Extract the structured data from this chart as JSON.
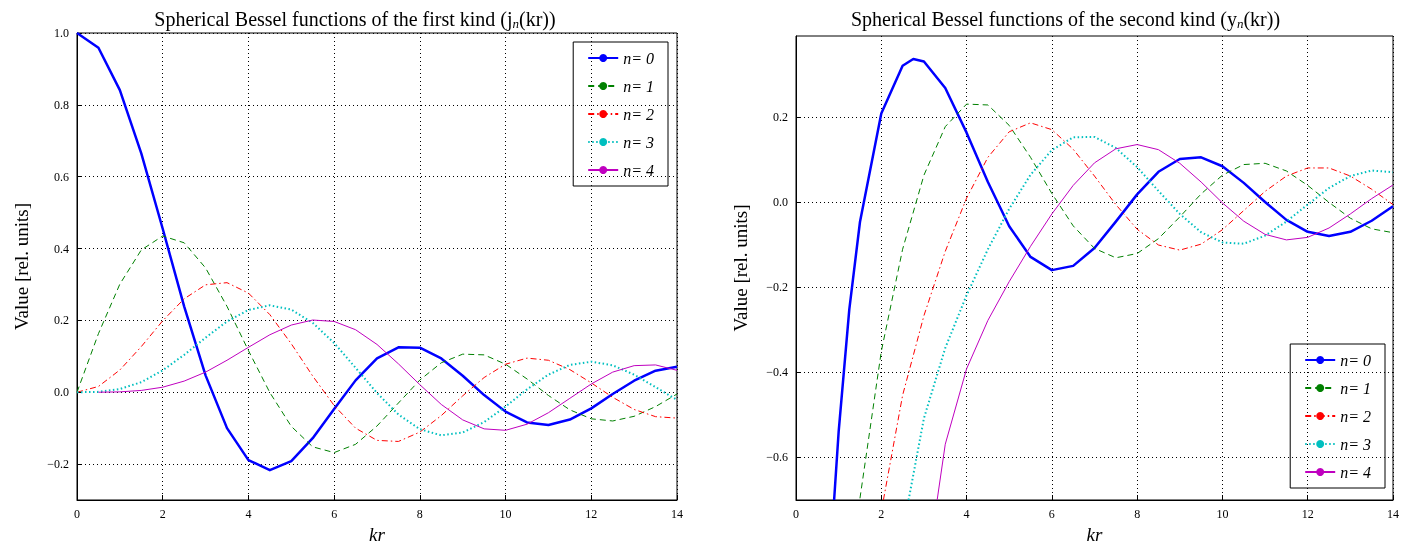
{
  "chart_data": [
    {
      "type": "line",
      "title": "Spherical Bessel functions of the first kind (j$_{n}$(kr))",
      "xlabel": "kr",
      "ylabel": "Value [rel. units]",
      "x": [
        0,
        0.5,
        1,
        1.5,
        2,
        2.5,
        3,
        3.5,
        4,
        4.5,
        5,
        5.5,
        6,
        6.5,
        7,
        7.5,
        8,
        8.5,
        9,
        9.5,
        10,
        10.5,
        11,
        11.5,
        12,
        12.5,
        13,
        13.5,
        14
      ],
      "series": [
        {
          "name": "n= 0",
          "color": "#0000ff",
          "line_style": "solid",
          "values": [
            1,
            0.959,
            0.841,
            0.665,
            0.455,
            0.239,
            0.047,
            -0.1,
            -0.189,
            -0.217,
            -0.192,
            -0.128,
            -0.047,
            0.033,
            0.094,
            0.125,
            0.124,
            0.094,
            0.046,
            -0.008,
            -0.054,
            -0.084,
            -0.091,
            -0.076,
            -0.045,
            -0.005,
            0.032,
            0.06,
            0.071
          ]
        },
        {
          "name": "n= 1",
          "color": "#008000",
          "line_style": "dashed",
          "values": [
            0,
            0.163,
            0.301,
            0.396,
            0.435,
            0.416,
            0.346,
            0.239,
            0.116,
            -0.001,
            -0.095,
            -0.152,
            -0.168,
            -0.145,
            -0.094,
            -0.03,
            0.034,
            0.082,
            0.106,
            0.104,
            0.078,
            0.037,
            -0.009,
            -0.049,
            -0.074,
            -0.08,
            -0.067,
            -0.04,
            -0.005
          ]
        },
        {
          "name": "n= 2",
          "color": "#ff0000",
          "line_style": "dashdot",
          "values": [
            0,
            0.016,
            0.062,
            0.127,
            0.199,
            0.26,
            0.299,
            0.305,
            0.276,
            0.216,
            0.135,
            0.045,
            -0.037,
            -0.1,
            -0.134,
            -0.137,
            -0.111,
            -0.065,
            -0.01,
            0.041,
            0.078,
            0.095,
            0.089,
            0.063,
            0.026,
            -0.014,
            -0.048,
            -0.068,
            -0.072
          ]
        },
        {
          "name": "n= 3",
          "color": "#00bfbf",
          "line_style": "dotted",
          "values": [
            0,
            0.001,
            0.009,
            0.028,
            0.061,
            0.104,
            0.152,
            0.197,
            0.229,
            0.242,
            0.23,
            0.193,
            0.137,
            0.068,
            -0.002,
            -0.062,
            -0.103,
            -0.12,
            -0.112,
            -0.083,
            -0.04,
            0.008,
            0.049,
            0.076,
            0.085,
            0.075,
            0.049,
            0.014,
            -0.021
          ]
        },
        {
          "name": "n= 4",
          "color": "#bf00bf",
          "line_style": "solid",
          "values": [
            null,
            0,
            0.001,
            0.005,
            0.014,
            0.031,
            0.056,
            0.089,
            0.125,
            0.16,
            0.187,
            0.201,
            0.197,
            0.174,
            0.133,
            0.079,
            0.021,
            -0.034,
            -0.077,
            -0.102,
            -0.106,
            -0.089,
            -0.057,
            -0.017,
            0.023,
            0.056,
            0.074,
            0.076,
            0.061
          ]
        }
      ],
      "xlim": [
        0,
        14
      ],
      "xticks": [
        0,
        2,
        4,
        6,
        8,
        10,
        12,
        14
      ],
      "ylim": [
        -0.3,
        1.0
      ],
      "yticks": [
        {
          "value": -0.2,
          "label": "−0.2"
        },
        {
          "value": 0,
          "label": "0.0"
        },
        0.2,
        0.4,
        0.6,
        0.8,
        {
          "value": 1,
          "label": "1.0"
        }
      ],
      "grid": true,
      "legend": "top right"
    },
    {
      "type": "line",
      "title": "Spherical Bessel functions of the second kind (y$_{n}$(kr))",
      "xlabel": "kr",
      "ylabel": "Value [rel. units]",
      "series": [
        {
          "name": "n= 0",
          "color": "#0000ff",
          "line_style": "solid",
          "x": [
            0.894,
            1,
            1.25,
            1.5,
            2,
            2.5,
            2.75,
            3,
            3.5,
            4,
            4.5,
            5,
            5.5,
            6,
            6.5,
            7,
            7.5,
            8,
            8.5,
            9,
            9.5,
            10,
            10.5,
            11,
            11.5,
            12,
            12.5,
            13,
            13.5,
            14
          ],
          "values": [
            -0.7,
            -0.54,
            -0.252,
            -0.047,
            0.208,
            0.32,
            0.336,
            0.33,
            0.268,
            0.163,
            0.047,
            -0.057,
            -0.129,
            -0.16,
            -0.15,
            -0.108,
            -0.046,
            0.018,
            0.071,
            0.101,
            0.105,
            0.084,
            0.045,
            0,
            -0.042,
            -0.07,
            -0.08,
            -0.07,
            -0.044,
            -0.01
          ]
        },
        {
          "name": "n= 1",
          "color": "#008000",
          "line_style": "dashed",
          "x": [
            1.5,
            2,
            2.5,
            3,
            3.5,
            4,
            4.5,
            5,
            5.5,
            6,
            6.5,
            7,
            7.5,
            8,
            8.5,
            9,
            9.5,
            10,
            10.5,
            11,
            11.5,
            12,
            12.5,
            13,
            13.5,
            14
          ],
          "values": [
            -0.696,
            -0.351,
            -0.111,
            0.063,
            0.177,
            0.23,
            0.228,
            0.18,
            0.105,
            0.02,
            -0.056,
            -0.109,
            -0.131,
            -0.121,
            -0.086,
            -0.035,
            0.019,
            0.063,
            0.088,
            0.091,
            0.073,
            0.039,
            -0.001,
            -0.038,
            -0.063,
            -0.072
          ]
        },
        {
          "name": "n= 2",
          "color": "#ff0000",
          "line_style": "dashdot",
          "x": [
            2.05,
            2.5,
            3,
            3.5,
            4,
            4.5,
            5,
            5.5,
            6,
            6.5,
            7,
            7.5,
            8,
            8.5,
            9,
            9.5,
            10,
            10.5,
            11,
            11.5,
            12,
            12.5,
            13,
            13.5,
            14
          ],
          "values": [
            -0.7,
            -0.454,
            -0.267,
            -0.116,
            0.009,
            0.105,
            0.165,
            0.186,
            0.17,
            0.124,
            0.061,
            -0.006,
            -0.064,
            -0.101,
            -0.113,
            -0.099,
            -0.065,
            -0.02,
            0.025,
            0.061,
            0.08,
            0.08,
            0.061,
            0.03,
            -0.006
          ]
        },
        {
          "name": "n= 3",
          "color": "#00bfbf",
          "line_style": "dotted",
          "x": [
            2.64,
            3,
            3.5,
            4,
            4.5,
            5,
            5.5,
            6,
            6.5,
            7,
            7.5,
            8,
            8.5,
            9,
            9.5,
            10,
            10.5,
            11,
            11.5,
            12,
            12.5,
            13,
            13.5,
            14
          ],
          "values": [
            -0.7,
            -0.508,
            -0.343,
            -0.219,
            -0.111,
            -0.016,
            0.064,
            0.122,
            0.152,
            0.153,
            0.127,
            0.082,
            0.026,
            -0.028,
            -0.071,
            -0.095,
            -0.098,
            -0.079,
            -0.046,
            -0.006,
            0.033,
            0.061,
            0.074,
            0.07
          ]
        },
        {
          "name": "n= 4",
          "color": "#bf00bf",
          "line_style": "solid",
          "x": [
            3.31,
            3.5,
            4,
            4.5,
            5,
            5.5,
            6,
            6.5,
            7,
            7.5,
            8,
            8.5,
            9,
            9.5,
            10,
            10.5,
            11,
            11.5,
            12,
            12.5,
            13,
            13.5,
            14
          ],
          "values": [
            -0.7,
            -0.569,
            -0.392,
            -0.278,
            -0.187,
            -0.104,
            -0.028,
            0.039,
            0.092,
            0.125,
            0.135,
            0.123,
            0.091,
            0.047,
            -0.002,
            -0.045,
            -0.076,
            -0.089,
            -0.083,
            -0.061,
            -0.028,
            0.008,
            0.04
          ]
        }
      ],
      "xlim": [
        0,
        14
      ],
      "xticks": [
        0,
        2,
        4,
        6,
        8,
        10,
        12,
        14
      ],
      "ylim": [
        -0.7,
        0.39
      ],
      "yticks": [
        {
          "value": -0.6,
          "label": "−0.6"
        },
        {
          "value": -0.4,
          "label": "−0.4"
        },
        {
          "value": -0.2,
          "label": "−0.2"
        },
        {
          "value": 0,
          "label": "0.0"
        },
        0.2
      ],
      "grid": true,
      "legend": "bottom right"
    }
  ]
}
